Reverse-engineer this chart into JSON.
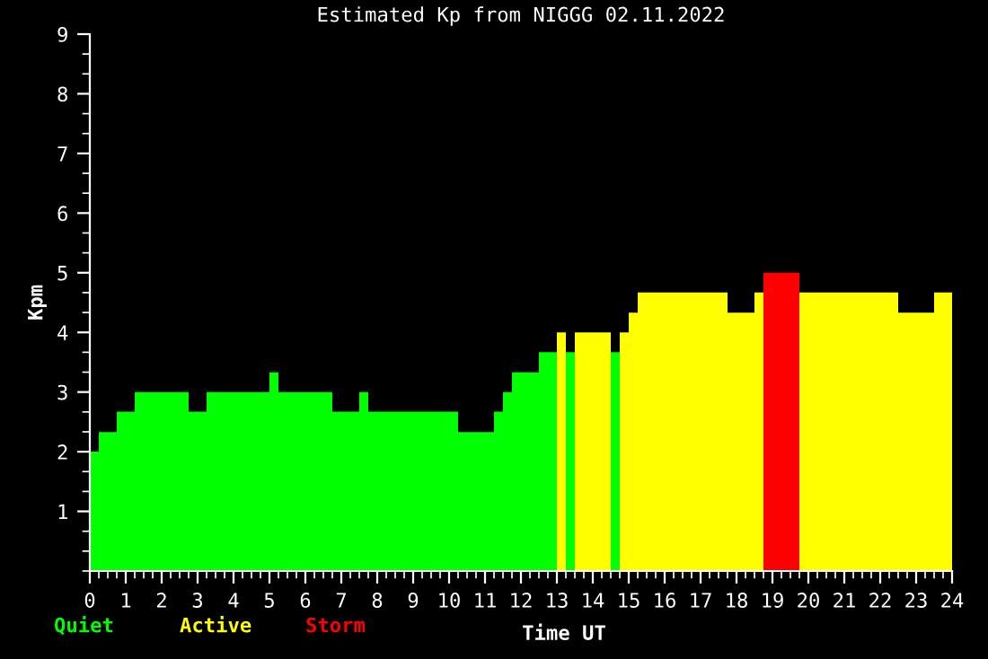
{
  "chart_data": {
    "type": "histogram",
    "title": "Estimated Kp from NIGGG 02.11.2022",
    "xlabel": "Time UT",
    "ylabel": "Kpm",
    "bins": [
      0,
      0.25,
      0.75,
      1.25,
      2.75,
      3.25,
      5,
      5.25,
      6.75,
      7.5,
      7.75,
      10.25,
      11.25,
      11.5,
      11.75,
      12.5,
      13,
      13.25,
      13.5,
      14.5,
      14.75,
      15,
      15.25,
      17.75,
      18.5,
      18.75,
      19.75,
      22.5,
      23.5,
      24
    ],
    "series": [
      {
        "name": "Quiet",
        "color": "#00ff00",
        "values": [
          2,
          2.33,
          2.67,
          3,
          2.67,
          3,
          3.33,
          3,
          2.67,
          3,
          2.67,
          2.33,
          2.67,
          3,
          3.33,
          3.67,
          null,
          3.67,
          null,
          3.67,
          null,
          null,
          null,
          null,
          null,
          null,
          null,
          null,
          null
        ]
      },
      {
        "name": "Active",
        "color": "#ffff00",
        "values": [
          null,
          null,
          null,
          null,
          null,
          null,
          null,
          null,
          null,
          null,
          null,
          null,
          null,
          null,
          null,
          null,
          4,
          null,
          4,
          null,
          4,
          4.33,
          4.67,
          4.33,
          4.67,
          null,
          4.67,
          4.33,
          4.67
        ]
      },
      {
        "name": "Storm",
        "color": "#ff0000",
        "values": [
          null,
          null,
          null,
          null,
          null,
          null,
          null,
          null,
          null,
          null,
          null,
          null,
          null,
          null,
          null,
          null,
          null,
          null,
          null,
          null,
          null,
          null,
          null,
          null,
          null,
          5,
          null,
          null,
          null
        ]
      }
    ],
    "xlim": [
      0,
      24
    ],
    "xticks": [
      0,
      1,
      2,
      3,
      4,
      5,
      6,
      7,
      8,
      9,
      10,
      11,
      12,
      13,
      14,
      15,
      16,
      17,
      18,
      19,
      20,
      21,
      22,
      23,
      24
    ],
    "ylim": [
      0,
      9
    ],
    "yticks": [
      1,
      2,
      3,
      4,
      5,
      6,
      7,
      8,
      9
    ],
    "grid": false,
    "legend": "bottom left"
  }
}
